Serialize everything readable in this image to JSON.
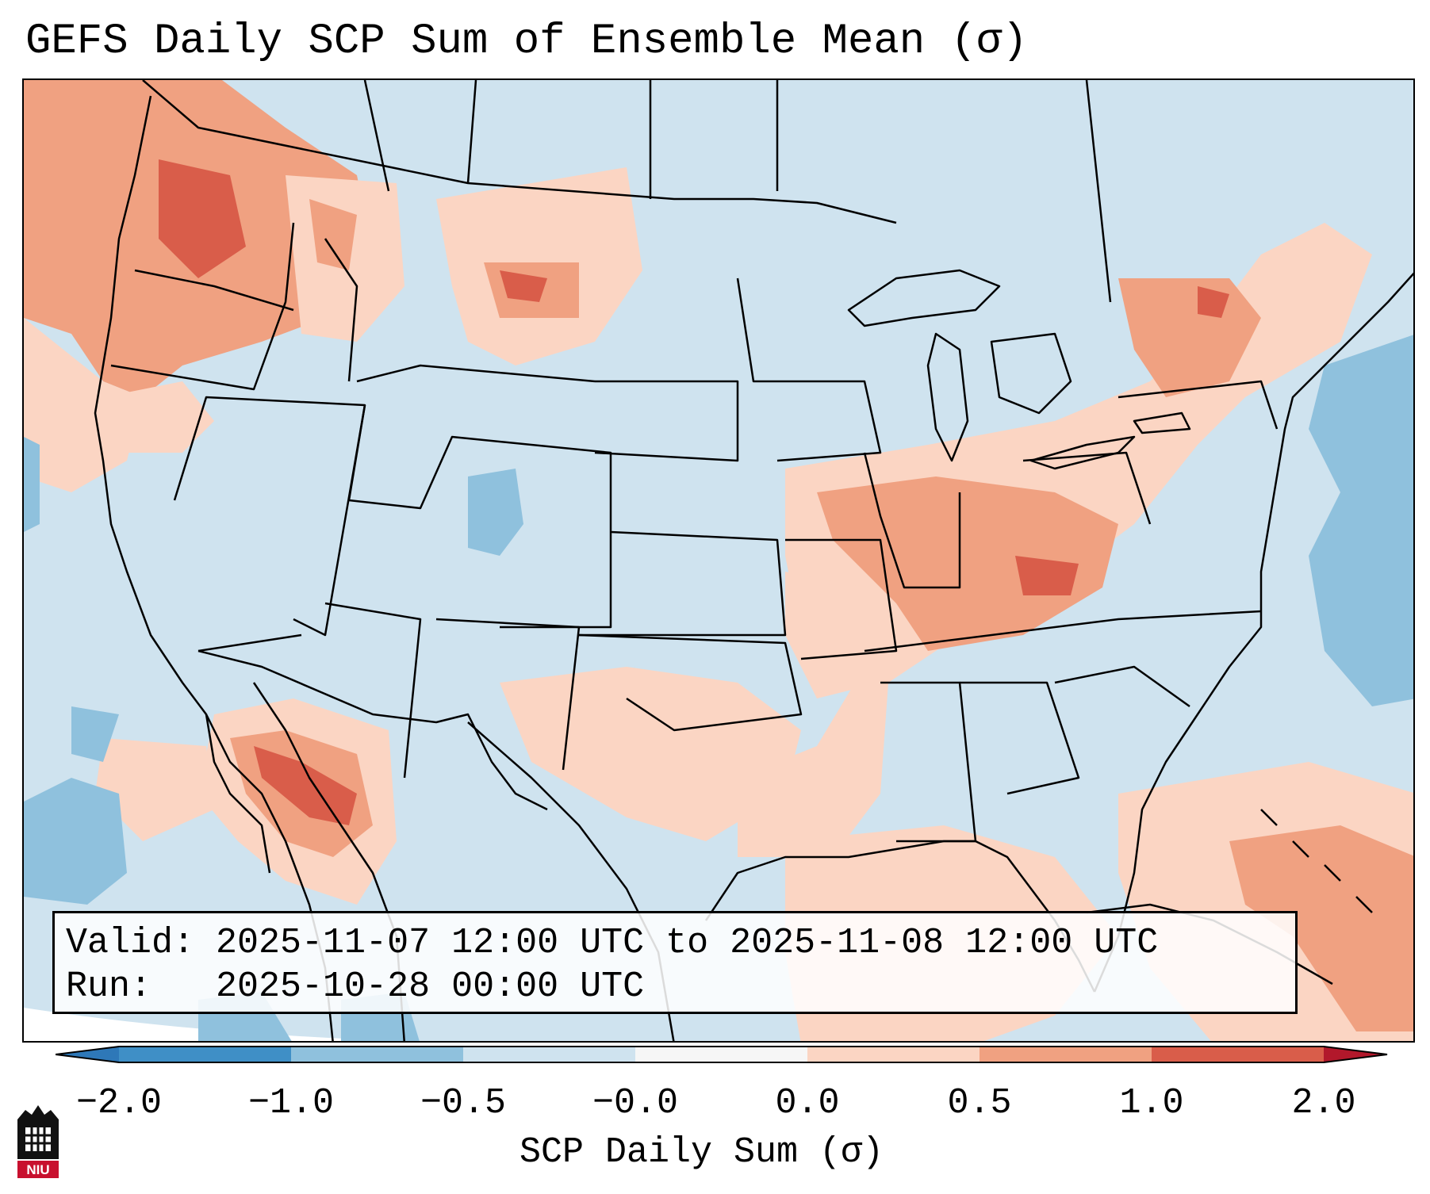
{
  "title": "GEFS Daily SCP Sum of Ensemble Mean (σ)",
  "info": {
    "valid": "Valid: 2025-11-07 12:00 UTC to 2025-11-08 12:00 UTC",
    "run": "Run:   2025-10-28 00:00 UTC"
  },
  "colorbar": {
    "label": "SCP Daily Sum (σ)",
    "ticks": [
      "−2.0",
      "−1.0",
      "−0.5",
      "−0.0",
      "0.0",
      "0.5",
      "1.0",
      "2.0"
    ],
    "colors": [
      "#3f8fc6",
      "#8fc1dd",
      "#cfe3ef",
      "#f6f6f6",
      "#fbd5c3",
      "#f0a181",
      "#d95d4a"
    ],
    "under_color": "#2e78b8",
    "over_color": "#b2182b"
  },
  "map": {
    "background_color": "#cfe3ef",
    "land_mask_color": "#ffffff"
  },
  "logo": {
    "text": "NIU"
  }
}
